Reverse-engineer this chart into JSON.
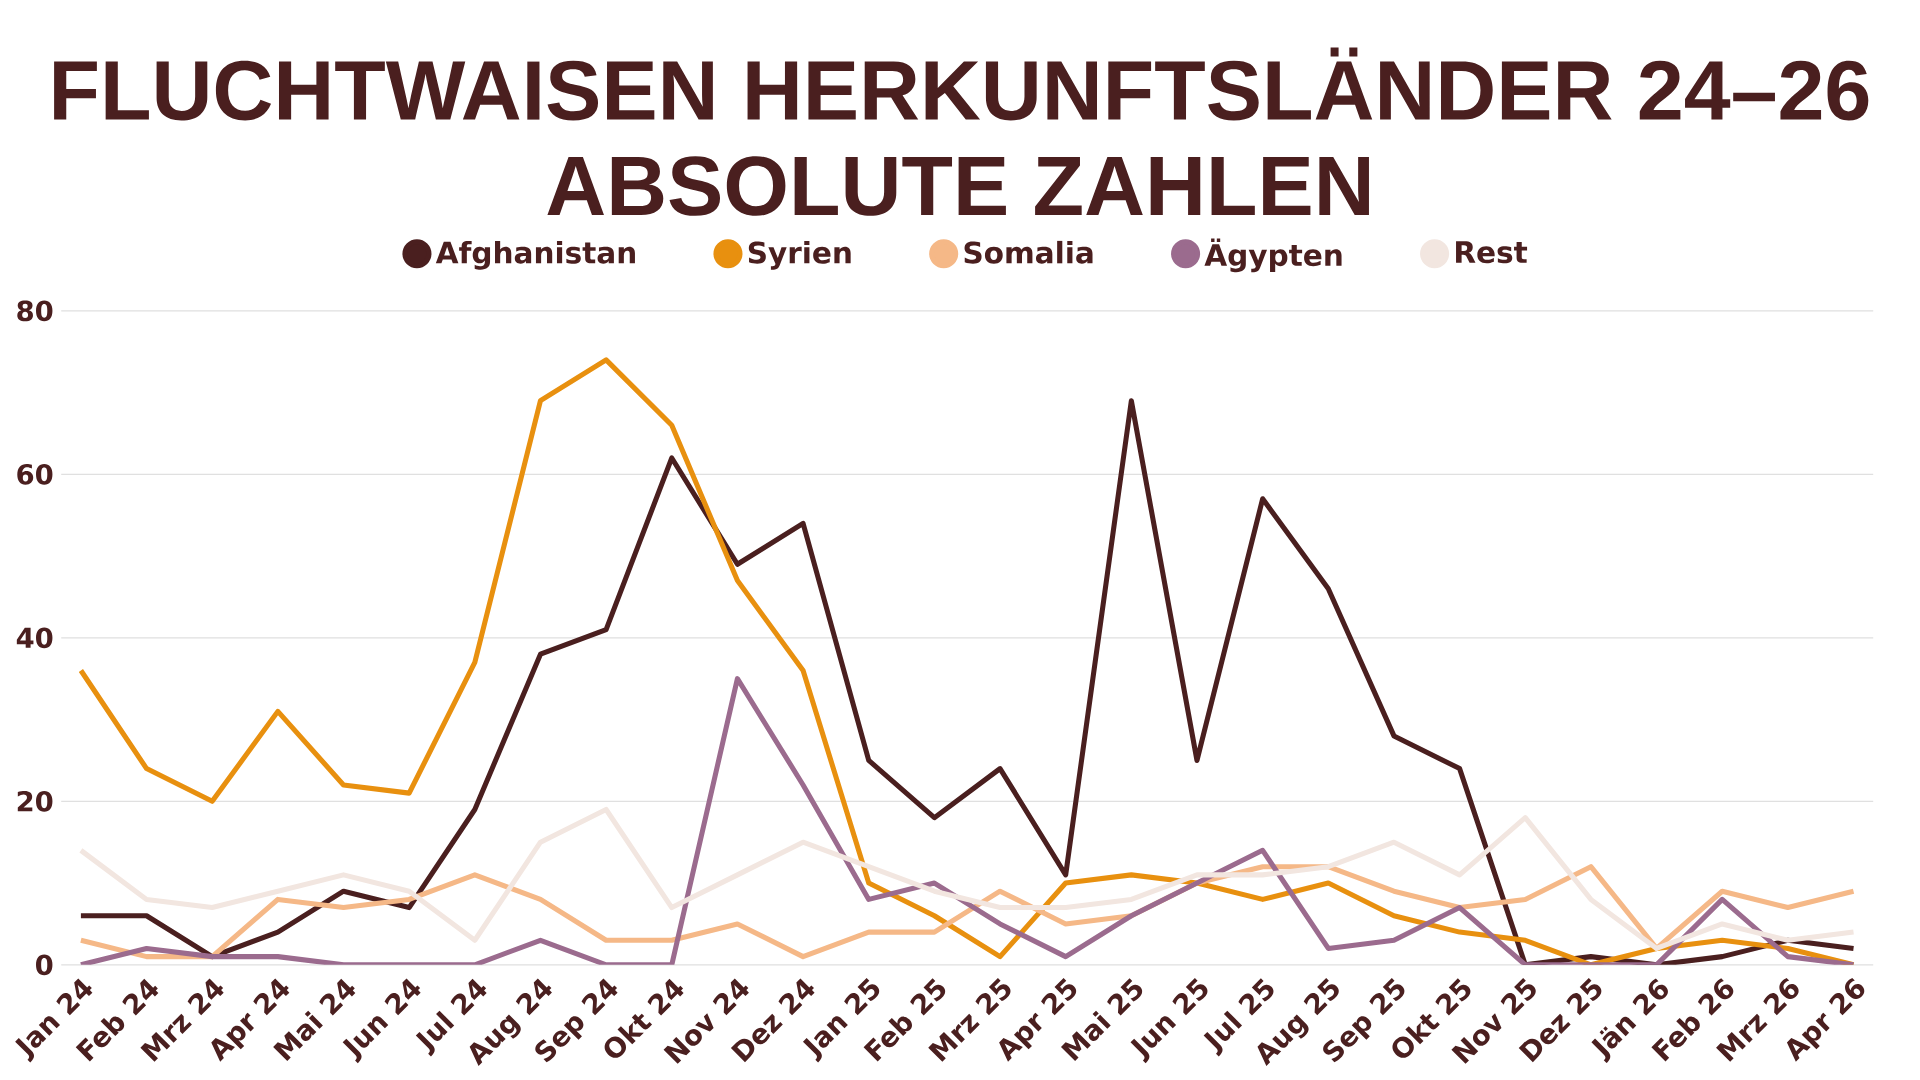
{
  "chart_data": {
    "type": "line",
    "title": "FLUCHTWAISEN HERKUNFTSLÄNDER 24–26",
    "subtitle": "ABSOLUTE ZAHLEN",
    "categories": [
      "Jan 24",
      "Feb 24",
      "Mrz 24",
      "Apr 24",
      "Mai 24",
      "Jun 24",
      "Jul 24",
      "Aug 24",
      "Sep 24",
      "Okt 24",
      "Nov 24",
      "Dez 24",
      "Jan 25",
      "Feb 25",
      "Mrz 25",
      "Apr 25",
      "Mai 25",
      "Jun 25",
      "Jul 25",
      "Aug 25",
      "Sep 25",
      "Okt 25",
      "Nov 25",
      "Dez 25",
      "Jän 26",
      "Feb 26",
      "Mrz 26",
      "Apr 26"
    ],
    "series": [
      {
        "name": "Afghanistan",
        "color": "#4a1f1f",
        "values": [
          6,
          6,
          1,
          4,
          9,
          7,
          19,
          38,
          41,
          62,
          49,
          54,
          25,
          18,
          24,
          11,
          69,
          25,
          57,
          46,
          28,
          24,
          0,
          1,
          0,
          1,
          3,
          2
        ]
      },
      {
        "name": "Syrien",
        "color": "#e8900f",
        "values": [
          36,
          24,
          20,
          31,
          22,
          21,
          37,
          69,
          74,
          66,
          47,
          36,
          10,
          6,
          1,
          10,
          11,
          10,
          8,
          10,
          6,
          4,
          3,
          0,
          2,
          3,
          2,
          0
        ]
      },
      {
        "name": "Somalia",
        "color": "#f5b887",
        "values": [
          3,
          1,
          1,
          8,
          7,
          8,
          11,
          8,
          3,
          3,
          5,
          1,
          4,
          4,
          9,
          5,
          6,
          10,
          12,
          12,
          9,
          7,
          8,
          12,
          2,
          9,
          7,
          9
        ]
      },
      {
        "name": "Ägypten",
        "color": "#9b6b8e",
        "values": [
          0,
          2,
          1,
          1,
          0,
          0,
          0,
          3,
          0,
          0,
          35,
          22,
          8,
          10,
          5,
          1,
          6,
          10,
          14,
          2,
          3,
          7,
          0,
          0,
          0,
          8,
          1,
          0
        ]
      },
      {
        "name": "Rest",
        "color": "#f2e6e0",
        "values": [
          14,
          8,
          7,
          9,
          11,
          9,
          3,
          15,
          19,
          7,
          11,
          15,
          12,
          9,
          7,
          7,
          8,
          11,
          11,
          12,
          15,
          11,
          18,
          8,
          2,
          5,
          3,
          4
        ]
      }
    ],
    "ylim": [
      0,
      80
    ],
    "yticks": [
      0,
      20,
      40,
      60,
      80
    ],
    "grid": "y",
    "legend": "top"
  }
}
